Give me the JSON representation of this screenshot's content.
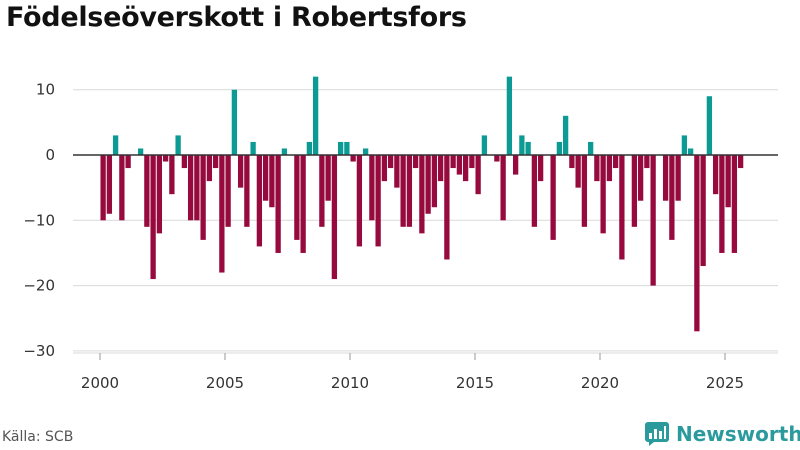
{
  "title": "Födelseöverskott i Robertsfors",
  "source": "Källa: SCB",
  "brand": {
    "name": "Newsworthy",
    "icon": "bar-chart-logo-icon"
  },
  "colors": {
    "positive": "#0c9b94",
    "negative": "#960a3e",
    "grid": "#d9d9d9",
    "zero": "#333333",
    "brand": "#2b9a9d"
  },
  "chart_data": {
    "type": "bar",
    "title": "Födelseöverskott i Robertsfors",
    "xlabel": "",
    "ylabel": "",
    "ylim": [
      -30,
      15
    ],
    "yticks": [
      10,
      0,
      -10,
      -20,
      -30
    ],
    "ytick_labels": [
      "10",
      "0",
      "−10",
      "−20",
      "−30"
    ],
    "xticks": [
      2000,
      2005,
      2010,
      2015,
      2020,
      2025
    ],
    "xlim": [
      1999,
      2027.2
    ],
    "grid": true,
    "legend": "none",
    "x_start": 2000.125,
    "x_step": 0.25,
    "values": [
      -10,
      -9,
      3,
      -10,
      -2,
      0,
      1,
      -11,
      -19,
      -12,
      -1,
      -6,
      3,
      -2,
      -10,
      -10,
      -13,
      -4,
      -2,
      -18,
      -11,
      10,
      -5,
      -11,
      2,
      -14,
      -7,
      -8,
      -15,
      1,
      0,
      -13,
      -15,
      2,
      12,
      -11,
      -7,
      -19,
      2,
      2,
      -1,
      -14,
      1,
      -10,
      -14,
      -4,
      -2,
      -5,
      -11,
      -11,
      -2,
      -12,
      -9,
      -8,
      -4,
      -16,
      -2,
      -3,
      -4,
      -2,
      -6,
      3,
      0,
      -1,
      -10,
      12,
      -3,
      3,
      2,
      -11,
      -4,
      0,
      -13,
      2,
      6,
      -2,
      -5,
      -11,
      2,
      -4,
      -12,
      -4,
      -2,
      -16,
      0,
      -11,
      -7,
      -2,
      -20,
      0,
      -7,
      -13,
      -7,
      3,
      1,
      -27,
      -17,
      9,
      -6,
      -15,
      -8,
      -15,
      -2
    ]
  }
}
